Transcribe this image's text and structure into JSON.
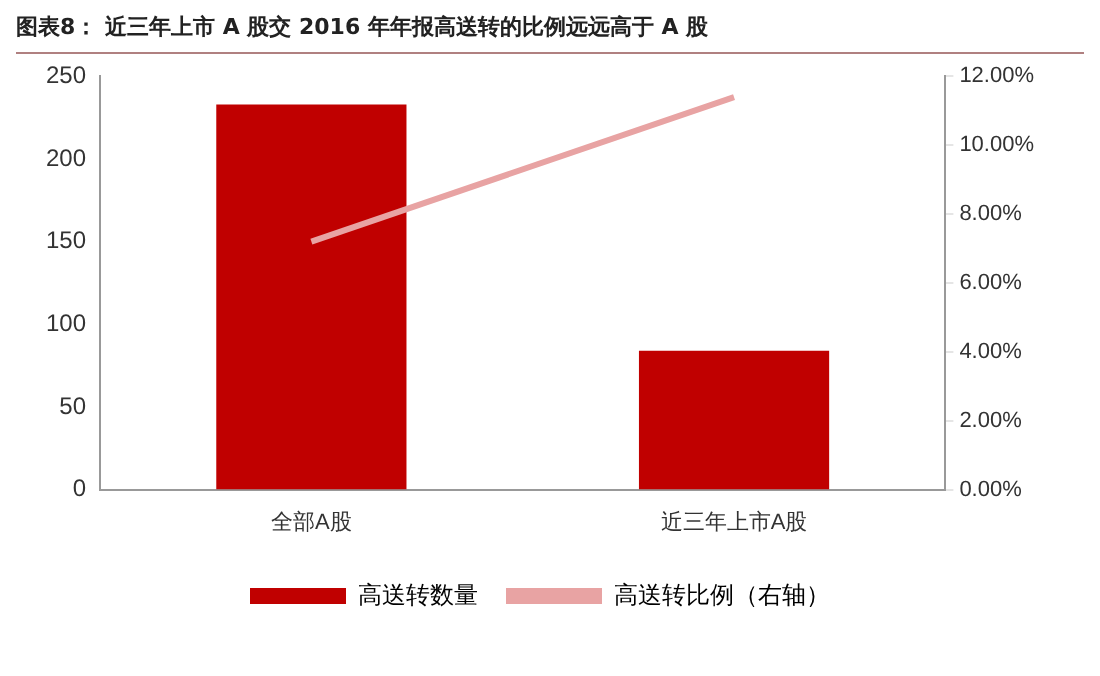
{
  "chart_data": {
    "type": "bar",
    "title": "图表8：  近三年上市 A 股交 2016 年年报高送转的比例远远高于 A 股",
    "categories": [
      "全部A股",
      "近三年上市A股"
    ],
    "series": [
      {
        "name": "高送转数量",
        "color": "#c00000",
        "values": [
          233,
          84
        ]
      },
      {
        "name": "高送转比例（右轴）",
        "type": "line",
        "axis": "y2",
        "color": "#e8a3a3",
        "values": [
          7.2,
          11.4
        ]
      }
    ],
    "ylim": [
      0,
      250
    ],
    "yticks": [
      0,
      50,
      100,
      150,
      200,
      250
    ],
    "y2lim": [
      0,
      12
    ],
    "y2ticks": [
      {
        "value": 0,
        "label": "0.00%"
      },
      {
        "value": 2,
        "label": "2.00%"
      },
      {
        "value": 4,
        "label": "4.00%"
      },
      {
        "value": 6,
        "label": "6.00%"
      },
      {
        "value": 8,
        "label": "8.00%"
      },
      {
        "value": 10,
        "label": "10.00%"
      },
      {
        "value": 12,
        "label": "12.00%"
      }
    ],
    "grid": false,
    "legend": "bottom",
    "marker": "none",
    "line_style": "solid"
  }
}
